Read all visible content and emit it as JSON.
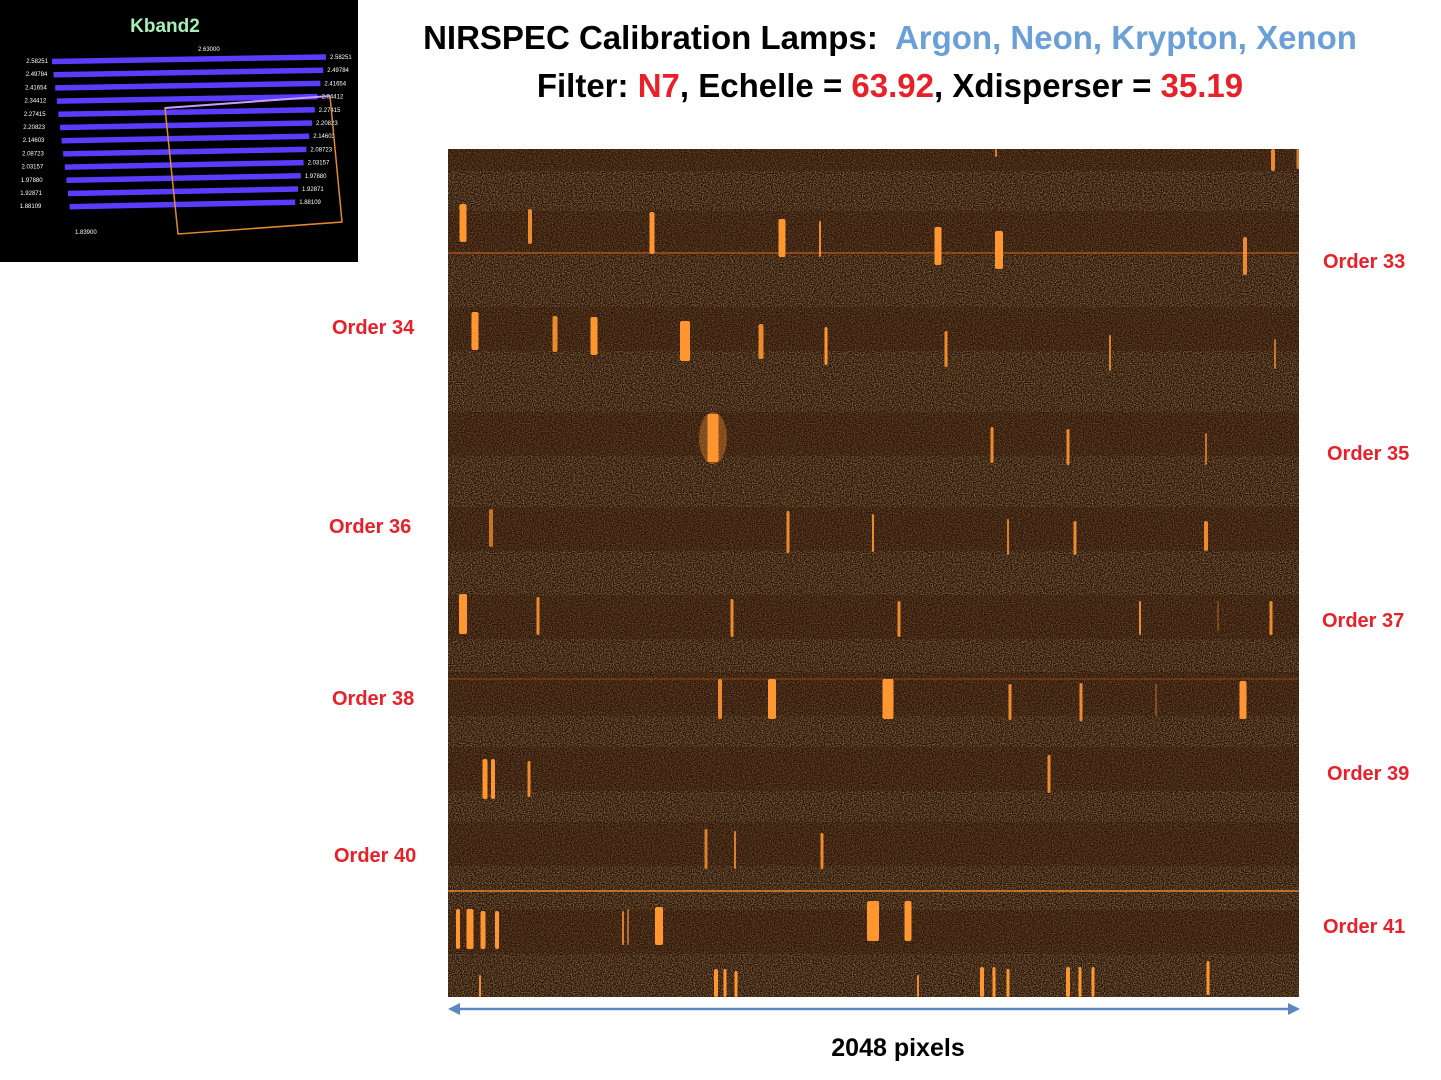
{
  "title": {
    "line1_prefix": "NIRSPEC Calibration Lamps:",
    "lamps": "Argon, Neon, Krypton, Xenon",
    "filter_label": "Filter:",
    "filter_value": "N7",
    "echelle_label": "Echelle =",
    "echelle_value": "63.92",
    "xdisperser_label": "Xdisperser =",
    "xdisperser_value": "35.19"
  },
  "inset": {
    "title": "Kband2",
    "top_label": "2.63000",
    "rows": [
      {
        "left": "2.58251",
        "right": "2.58251"
      },
      {
        "left": "2.49784",
        "right": "2.49784"
      },
      {
        "left": "2.41654",
        "right": "2.41654"
      },
      {
        "left": "2.34412",
        "right": "2.34412"
      },
      {
        "left": "2.27415",
        "right": "2.27415"
      },
      {
        "left": "2.20823",
        "right": "2.20823"
      },
      {
        "left": "2.14603",
        "right": "2.14603"
      },
      {
        "left": "2.08723",
        "right": "2.08723"
      },
      {
        "left": "2.03157",
        "right": "2.03157"
      },
      {
        "left": "1.97880",
        "right": "1.97880"
      },
      {
        "left": "1.92871",
        "right": "1.92871"
      },
      {
        "left": "1.88109",
        "right": "1.88109"
      }
    ],
    "bottom_label": "1.83900",
    "colors": {
      "bar": "#5a3cff",
      "box": "#e08a30",
      "title": "#a8f0b8"
    }
  },
  "orders": {
    "left": [
      "Order 34",
      "Order 36",
      "Order 38",
      "Order 40"
    ],
    "right": [
      "Order 33",
      "Order 35",
      "Order 37",
      "Order 39",
      "Order 41"
    ]
  },
  "axis": {
    "label": "2048 pixels",
    "arrow_color": "#5b87c2"
  },
  "colors": {
    "line": "#ff9630",
    "background": "#1c0d05"
  }
}
